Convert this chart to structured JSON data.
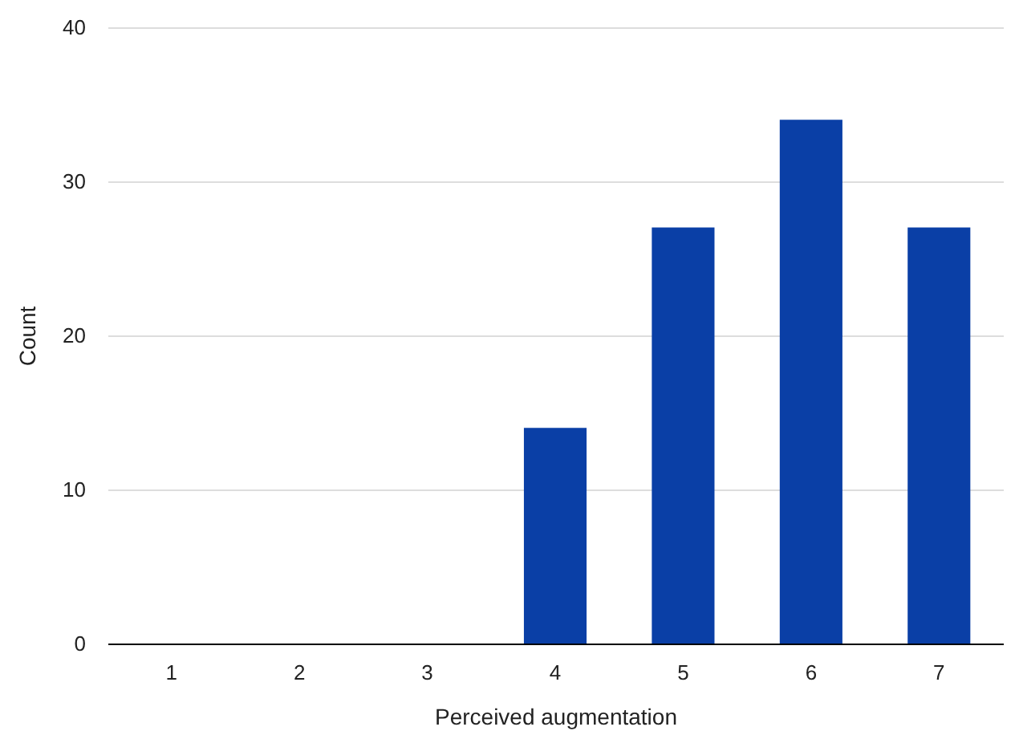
{
  "chart_data": {
    "type": "bar",
    "xlabel": "Perceived augmentation",
    "ylabel": "Count",
    "categories": [
      "1",
      "2",
      "3",
      "4",
      "5",
      "6",
      "7"
    ],
    "values": [
      0,
      0,
      0,
      14,
      27,
      34,
      27
    ],
    "color": "#0a3fa6",
    "ylim": [
      0,
      40
    ],
    "yticks": [
      0,
      10,
      20,
      30,
      40
    ],
    "grid": "y"
  }
}
